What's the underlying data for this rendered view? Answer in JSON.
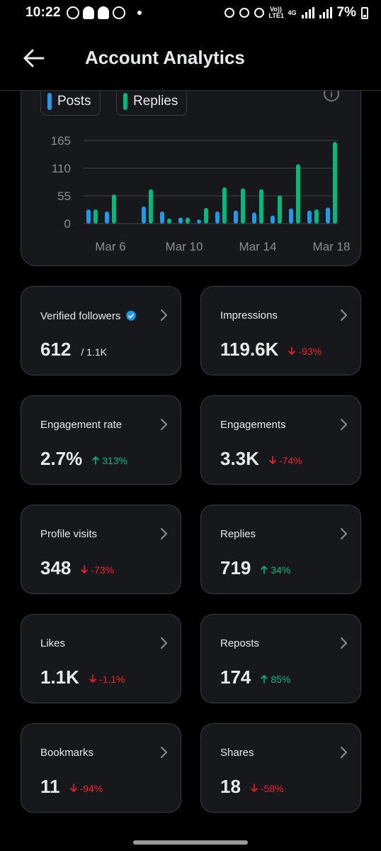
{
  "status_bar": {
    "time": "10:22",
    "battery": "7%",
    "network_label": "4G",
    "volte_label": "Vo)) LTE1"
  },
  "header": {
    "title": "Account Analytics"
  },
  "chart_data": {
    "type": "bar",
    "legend": [
      {
        "name": "Posts",
        "color": "#1d9bf0"
      },
      {
        "name": "Replies",
        "color": "#00ba7c"
      }
    ],
    "x_tick_labels": [
      "Mar 6",
      "Mar 10",
      "Mar 14",
      "Mar 18"
    ],
    "y_ticks": [
      0,
      55,
      110,
      165
    ],
    "ylim": [
      0,
      165
    ],
    "categories": [
      "Mar 5",
      "Mar 6",
      "Mar 7",
      "Mar 8",
      "Mar 9",
      "Mar 10",
      "Mar 11",
      "Mar 12",
      "Mar 13",
      "Mar 14",
      "Mar 15",
      "Mar 16",
      "Mar 17",
      "Mar 18",
      "Mar 19"
    ],
    "series": [
      {
        "name": "Posts",
        "color": "#1d9bf0",
        "values": [
          28,
          24,
          0,
          34,
          24,
          12,
          8,
          24,
          26,
          22,
          16,
          30,
          26,
          32,
          0
        ]
      },
      {
        "name": "Replies",
        "color": "#00ba7c",
        "values": [
          28,
          58,
          0,
          68,
          10,
          12,
          31,
          72,
          70,
          68,
          56,
          118,
          28,
          162,
          0
        ]
      }
    ],
    "grid": true
  },
  "cards": [
    {
      "label": "Verified followers",
      "value": "612",
      "sub": "/ 1.1K",
      "delta": "",
      "direction": "",
      "verified": true
    },
    {
      "label": "Impressions",
      "value": "119.6K",
      "sub": "",
      "delta": "-93%",
      "direction": "down"
    },
    {
      "label": "Engagement rate",
      "value": "2.7%",
      "sub": "",
      "delta": "313%",
      "direction": "up"
    },
    {
      "label": "Engagements",
      "value": "3.3K",
      "sub": "",
      "delta": "-74%",
      "direction": "down"
    },
    {
      "label": "Profile visits",
      "value": "348",
      "sub": "",
      "delta": "-73%",
      "direction": "down"
    },
    {
      "label": "Replies",
      "value": "719",
      "sub": "",
      "delta": "34%",
      "direction": "up"
    },
    {
      "label": "Likes",
      "value": "1.1K",
      "sub": "",
      "delta": "-1.1%",
      "direction": "down"
    },
    {
      "label": "Reposts",
      "value": "174",
      "sub": "",
      "delta": "85%",
      "direction": "up"
    },
    {
      "label": "Bookmarks",
      "value": "11",
      "sub": "",
      "delta": "-94%",
      "direction": "down"
    },
    {
      "label": "Shares",
      "value": "18",
      "sub": "",
      "delta": "-58%",
      "direction": "down"
    }
  ],
  "colors": {
    "background": "#000000",
    "card": "#16181c",
    "border": "#3a3d40",
    "up": "#00ba7c",
    "down": "#f4212e",
    "accent": "#1d9bf0"
  }
}
